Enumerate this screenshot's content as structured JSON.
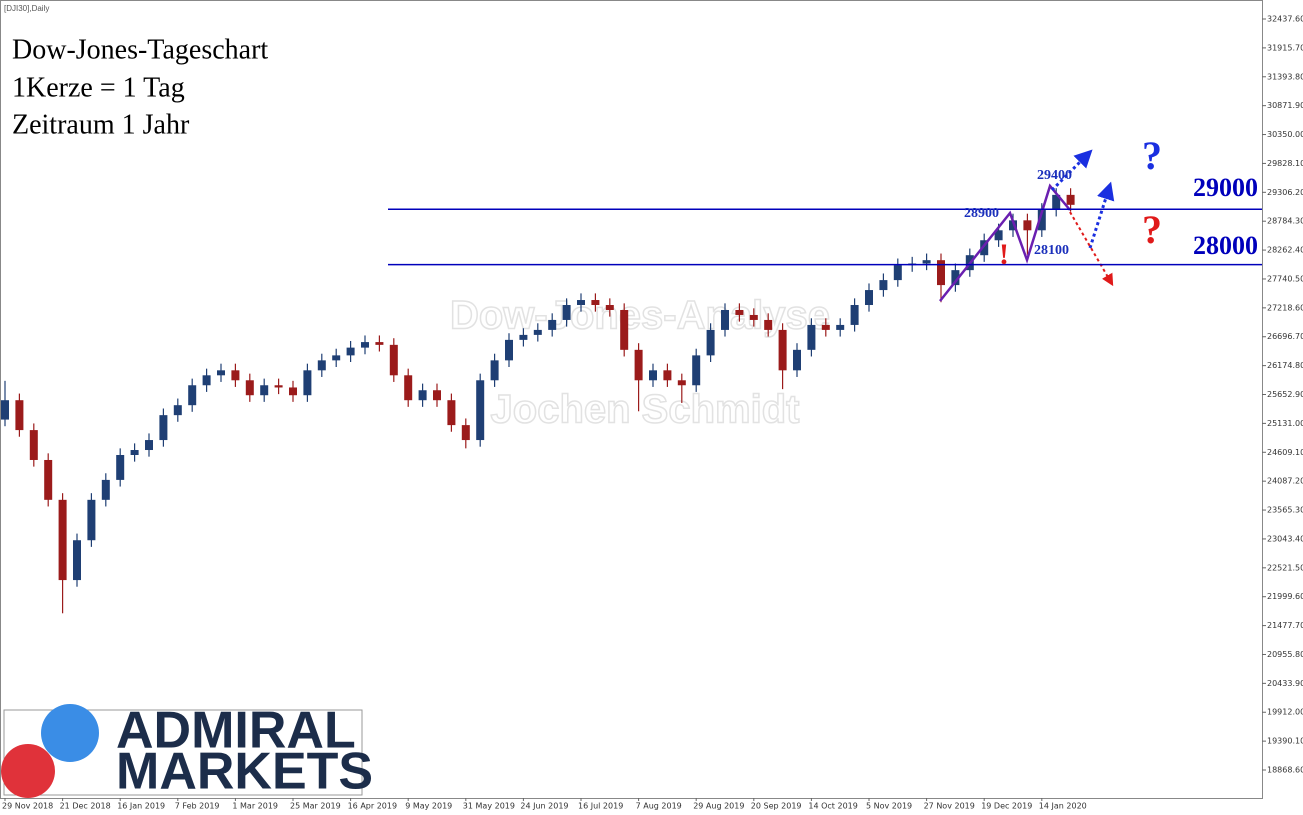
{
  "chart_data": {
    "type": "candlestick",
    "symbol": "[DJI30],Daily",
    "title": [
      "Dow-Jones-Tageschart",
      "1Kerze = 1 Tag",
      "Zeitraum 1 Jahr"
    ],
    "watermark": [
      "Dow-Jones-Analyse",
      "Jochen Schmidt"
    ],
    "logo": [
      "ADMIRAL",
      "MARKETS"
    ],
    "categories": [
      "29 Nov 2018",
      null,
      null,
      null,
      "21 Dec 2018",
      null,
      null,
      null,
      "16 Jan 2019",
      null,
      null,
      null,
      "7 Feb 2019",
      null,
      null,
      null,
      "1 Mar 2019",
      null,
      null,
      null,
      "25 Mar 2019",
      null,
      null,
      null,
      "16 Apr 2019",
      null,
      null,
      null,
      "9 May 2019",
      null,
      null,
      null,
      "31 May 2019",
      null,
      null,
      null,
      "24 Jun 2019",
      null,
      null,
      null,
      "16 Jul 2019",
      null,
      null,
      null,
      "7 Aug 2019",
      null,
      null,
      null,
      "29 Aug 2019",
      null,
      null,
      null,
      "20 Sep 2019",
      null,
      null,
      null,
      "14 Oct 2019",
      null,
      null,
      null,
      "5 Nov 2019",
      null,
      null,
      null,
      "27 Nov 2019",
      null,
      null,
      null,
      "19 Dec 2019",
      null,
      null,
      null,
      "14 Jan 2020",
      null,
      null
    ],
    "open": [
      25200,
      25550,
      25010,
      24470,
      23750,
      22300,
      23020,
      23750,
      24110,
      24560,
      24650,
      24830,
      25280,
      25460,
      25820,
      26000,
      26090,
      25910,
      25640,
      25820,
      25780,
      25640,
      26090,
      26270,
      26360,
      26500,
      26600,
      26550,
      26000,
      25550,
      25730,
      25550,
      25100,
      24830,
      25910,
      26270,
      26640,
      26730,
      26820,
      27000,
      27270,
      27360,
      27270,
      27180,
      26460,
      25910,
      26090,
      25910,
      25820,
      26360,
      26820,
      27180,
      27090,
      27000,
      26820,
      26090,
      26460,
      26910,
      26820,
      26910,
      27270,
      27540,
      27720,
      27990,
      28020,
      28080,
      27630,
      27900,
      28170,
      28440,
      28620,
      28800,
      28620,
      28990,
      29260
    ],
    "high": [
      25900,
      25670,
      25130,
      24590,
      23870,
      23140,
      23870,
      24230,
      24680,
      24770,
      24950,
      25400,
      25580,
      25940,
      26120,
      26210,
      26210,
      26030,
      25940,
      25940,
      25900,
      26210,
      26390,
      26480,
      26620,
      26720,
      26720,
      26670,
      26120,
      25850,
      25850,
      25670,
      25220,
      26030,
      26390,
      26760,
      26850,
      26940,
      27120,
      27390,
      27480,
      27480,
      27390,
      27300,
      26580,
      26210,
      26210,
      26030,
      26480,
      26940,
      27300,
      27300,
      27210,
      27120,
      26940,
      26580,
      27030,
      27030,
      27030,
      27390,
      27660,
      27840,
      28110,
      28140,
      28200,
      28200,
      28020,
      28290,
      28560,
      28740,
      28920,
      28920,
      29110,
      29380,
      29380
    ],
    "low": [
      25080,
      24890,
      24350,
      23630,
      21700,
      22180,
      22900,
      23630,
      23990,
      24440,
      24530,
      24710,
      25160,
      25340,
      25700,
      25880,
      25790,
      25520,
      25520,
      25660,
      25520,
      25520,
      25970,
      26150,
      26240,
      26380,
      26430,
      25880,
      25430,
      25430,
      25430,
      24980,
      24680,
      24710,
      25790,
      26150,
      26520,
      26610,
      26700,
      26880,
      27150,
      27150,
      27060,
      26340,
      25350,
      25790,
      25790,
      25500,
      25700,
      26240,
      26700,
      26970,
      26880,
      26700,
      25750,
      25970,
      26340,
      26700,
      26700,
      26790,
      27150,
      27420,
      27600,
      27870,
      27900,
      27320,
      27510,
      27780,
      28050,
      28320,
      28500,
      28180,
      28500,
      28870,
      28960
    ],
    "close": [
      25550,
      25010,
      24470,
      23750,
      22300,
      23020,
      23750,
      24110,
      24560,
      24650,
      24830,
      25280,
      25460,
      25820,
      26000,
      26090,
      25910,
      25640,
      25820,
      25780,
      25640,
      26090,
      26270,
      26360,
      26500,
      26600,
      26550,
      26000,
      25550,
      25730,
      25550,
      25100,
      24830,
      25910,
      26270,
      26640,
      26730,
      26820,
      27000,
      27270,
      27360,
      27270,
      27180,
      26460,
      25910,
      26090,
      25910,
      25820,
      26360,
      26820,
      27180,
      27090,
      27000,
      26820,
      26090,
      26460,
      26910,
      26820,
      26910,
      27270,
      27540,
      27720,
      27990,
      28020,
      28080,
      27630,
      27900,
      28170,
      28440,
      28620,
      28800,
      28620,
      28990,
      29260,
      29080
    ],
    "up_color": "#1f3f74",
    "down_color": "#9b1b1b",
    "ylim": [
      18362.6,
      32726.7
    ],
    "yticks": [
      {
        "value": 32437.6,
        "label": "32437.60"
      },
      {
        "value": 31915.7,
        "label": "31915.70"
      },
      {
        "value": 31393.8,
        "label": "31393.80"
      },
      {
        "value": 30871.9,
        "label": "30871.90"
      },
      {
        "value": 30350,
        "label": "30350.00"
      },
      {
        "value": 29828.1,
        "label": "29828.10"
      },
      {
        "value": 29306.2,
        "label": "29306.20"
      },
      {
        "value": 28784.3,
        "label": "28784.30"
      },
      {
        "value": 28262.4,
        "label": "28262.40"
      },
      {
        "value": 27740.5,
        "label": "27740.50"
      },
      {
        "value": 27218.6,
        "label": "27218.60"
      },
      {
        "value": 26696.7,
        "label": "26696.70"
      },
      {
        "value": 26174.8,
        "label": "26174.80"
      },
      {
        "value": 25652.9,
        "label": "25652.90"
      },
      {
        "value": 25131,
        "label": "25131.00"
      },
      {
        "value": 24609.1,
        "label": "24609.10"
      },
      {
        "value": 24087.2,
        "label": "24087.20"
      },
      {
        "value": 23565.3,
        "label": "23565.30"
      },
      {
        "value": 23043.4,
        "label": "23043.40"
      },
      {
        "value": 22521.5,
        "label": "22521.50"
      },
      {
        "value": 21999.6,
        "label": "21999.60"
      },
      {
        "value": 21477.7,
        "label": "21477.70"
      },
      {
        "value": 20955.8,
        "label": "20955.80"
      },
      {
        "value": 20433.9,
        "label": "20433.90"
      },
      {
        "value": 19912,
        "label": "19912.00"
      },
      {
        "value": 19390.1,
        "label": "19390.10"
      },
      {
        "value": 18868.6,
        "label": "18868.60"
      }
    ],
    "levels": [
      29000,
      28000
    ],
    "level_color": "#0000bb",
    "annotations": [
      "28900",
      "28100",
      "29400",
      "?",
      "?",
      "!"
    ]
  }
}
